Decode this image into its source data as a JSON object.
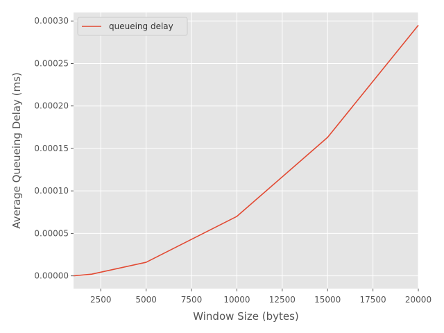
{
  "chart_data": {
    "type": "line",
    "xlabel": "Window Size (bytes)",
    "ylabel": "Average Queueing Delay (ms)",
    "xlim": [
      1000,
      20000
    ],
    "ylim": [
      -1.5e-05,
      0.00031
    ],
    "xticks": [
      2500,
      5000,
      7500,
      10000,
      12500,
      15000,
      17500,
      20000
    ],
    "xtick_labels": [
      "2500",
      "5000",
      "7500",
      "10000",
      "12500",
      "15000",
      "17500",
      "20000"
    ],
    "yticks": [
      0,
      5e-05,
      0.0001,
      0.00015,
      0.0002,
      0.00025,
      0.0003
    ],
    "ytick_labels": [
      "0.00000",
      "0.00005",
      "0.00010",
      "0.00015",
      "0.00020",
      "0.00025",
      "0.00030"
    ],
    "grid": true,
    "legend_position": "top-left",
    "series": [
      {
        "name": "queueing delay",
        "color": "#E24A33",
        "x": [
          1000,
          2000,
          5000,
          10000,
          15000,
          20000
        ],
        "y": [
          0.0,
          2e-06,
          1.6e-05,
          7e-05,
          0.000163,
          0.000295
        ]
      }
    ]
  },
  "colors": {
    "plot_background": "#E5E5E5",
    "grid": "#FFFFFF",
    "text": "#555555"
  }
}
